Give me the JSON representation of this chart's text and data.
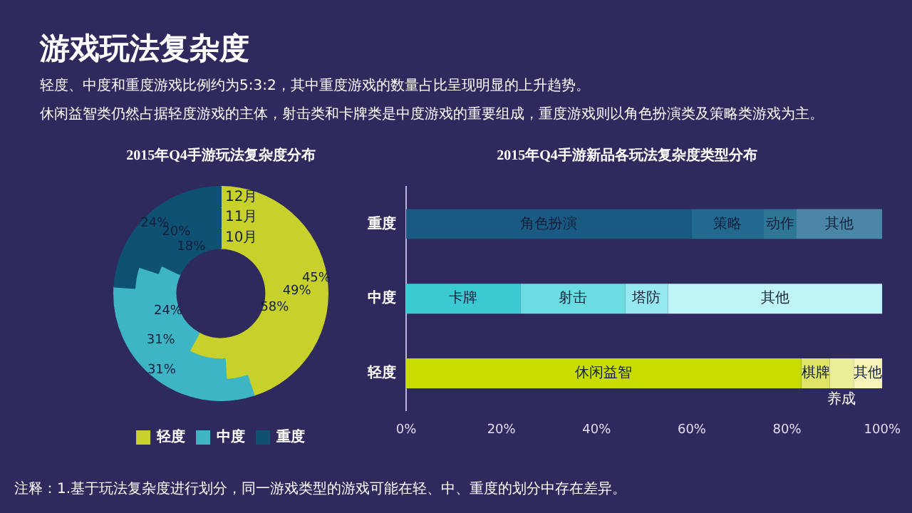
{
  "chart_data": [
    {
      "type": "other",
      "title": "游戏玩法复杂度",
      "annotations": [
        "轻度、中度和重度游戏比例约为5:3:2，其中重度游戏的数量占比呈现明显的上升趋势。",
        "休闲益智类仍然占据轻度游戏的主体，射击类和卡牌类是中度游戏的重要组成，重度游戏则以角色扮演类及策略类游戏为主。"
      ]
    },
    {
      "type": "donut",
      "title": "2015年Q4手游玩法复杂度分布",
      "categories": [
        "轻度",
        "中度",
        "重度"
      ],
      "colors": [
        "#c8d12b",
        "#3eb5c5",
        "#0f5173"
      ],
      "legend": "bottom",
      "series": [
        {
          "name": "12月",
          "values": [
            45,
            31,
            24
          ],
          "value_labels": [
            "45%",
            "31%",
            "24%"
          ]
        },
        {
          "name": "11月",
          "values": [
            49,
            31,
            20
          ],
          "value_labels": [
            "49%",
            "31%",
            "20%"
          ]
        },
        {
          "name": "10月",
          "values": [
            58,
            24,
            18
          ],
          "value_labels": [
            "58%",
            "24%",
            "18%"
          ]
        }
      ]
    },
    {
      "type": "bar",
      "title": "2015年Q4手游新品各玩法复杂度类型分布",
      "orientation": "horizontal",
      "stacked": true,
      "categories": [
        "重度",
        "中度",
        "轻度"
      ],
      "xlim": [
        0,
        100
      ],
      "xticks": [
        {
          "value": 0,
          "label": "0%"
        },
        {
          "value": 20,
          "label": "20%"
        },
        {
          "value": 40,
          "label": "40%"
        },
        {
          "value": 60,
          "label": "60%"
        },
        {
          "value": 80,
          "label": "80%"
        },
        {
          "value": 100,
          "label": "100%"
        }
      ],
      "series": [
        {
          "name": "角色扮演",
          "color": "#1a5a82",
          "values": [
            60,
            null,
            null
          ]
        },
        {
          "name": "策略",
          "color": "#22698f",
          "values": [
            15,
            null,
            null
          ]
        },
        {
          "name": "动作",
          "color": "#2d7696",
          "values": [
            7,
            null,
            null
          ]
        },
        {
          "name": "其他",
          "color": "#4a87a6",
          "values": [
            18,
            null,
            null
          ]
        },
        {
          "name": "卡牌",
          "color": "#3ccad2",
          "values": [
            null,
            24,
            null
          ]
        },
        {
          "name": "射击",
          "color": "#6bdce2",
          "values": [
            null,
            22,
            null
          ]
        },
        {
          "name": "塔防",
          "color": "#96e9ee",
          "values": [
            null,
            9,
            null
          ]
        },
        {
          "name": "其他",
          "color": "#bff5f7",
          "values": [
            null,
            45,
            null
          ]
        },
        {
          "name": "休闲益智",
          "color": "#c8dc00",
          "values": [
            null,
            null,
            83
          ]
        },
        {
          "name": "棋牌",
          "color": "#dde466",
          "values": [
            null,
            null,
            6
          ]
        },
        {
          "name": "养成",
          "color": "#eaee98",
          "values": [
            null,
            null,
            5
          ]
        },
        {
          "name": "其他",
          "color": "#f6f4b8",
          "values": [
            null,
            null,
            6
          ]
        }
      ]
    },
    {
      "type": "other",
      "annotations": [
        "注释：1.基于玩法复杂度进行划分，同一游戏类型的游戏可能在轻、中、重度的划分中存在差异。"
      ]
    }
  ]
}
